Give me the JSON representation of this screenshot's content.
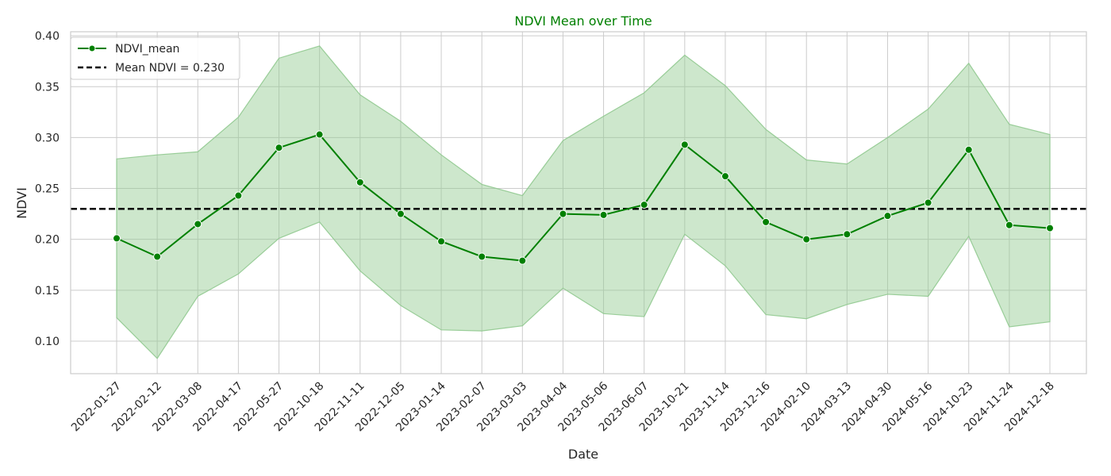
{
  "chart_data": {
    "type": "line",
    "title": "NDVI Mean over Time",
    "xlabel": "Date",
    "ylabel": "NDVI",
    "ylim": [
      0.068,
      0.404
    ],
    "yticks": [
      0.1,
      0.15,
      0.2,
      0.25,
      0.3,
      0.35,
      0.4
    ],
    "grid": true,
    "legend_placement": "top-left",
    "categories": [
      "2022-01-27",
      "2022-02-12",
      "2022-03-08",
      "2022-04-17",
      "2022-05-27",
      "2022-10-18",
      "2022-11-11",
      "2022-12-05",
      "2023-01-14",
      "2023-02-07",
      "2023-03-03",
      "2023-04-04",
      "2023-05-06",
      "2023-06-07",
      "2023-10-21",
      "2023-11-14",
      "2023-12-16",
      "2024-02-10",
      "2024-03-13",
      "2024-04-30",
      "2024-05-16",
      "2024-10-23",
      "2024-11-24",
      "2024-12-18"
    ],
    "series": [
      {
        "name": "NDVI_mean",
        "color": "#008000",
        "values": [
          0.201,
          0.183,
          0.215,
          0.243,
          0.29,
          0.303,
          0.256,
          0.225,
          0.198,
          0.183,
          0.179,
          0.225,
          0.224,
          0.234,
          0.293,
          0.262,
          0.217,
          0.2,
          0.205,
          0.223,
          0.236,
          0.288,
          0.214,
          0.211
        ]
      }
    ],
    "band": {
      "color": "#90c98f",
      "upper": [
        0.279,
        0.283,
        0.286,
        0.32,
        0.378,
        0.39,
        0.342,
        0.316,
        0.283,
        0.254,
        0.243,
        0.297,
        0.321,
        0.344,
        0.381,
        0.351,
        0.308,
        0.278,
        0.274,
        0.3,
        0.328,
        0.373,
        0.313,
        0.303
      ],
      "lower": [
        0.123,
        0.083,
        0.144,
        0.166,
        0.201,
        0.217,
        0.169,
        0.135,
        0.111,
        0.11,
        0.115,
        0.152,
        0.127,
        0.124,
        0.205,
        0.174,
        0.126,
        0.122,
        0.136,
        0.146,
        0.144,
        0.203,
        0.114,
        0.119
      ]
    },
    "reference_line": {
      "label": "Mean NDVI = 0.230",
      "value": 0.23,
      "color": "#000000",
      "style": "dashed"
    }
  }
}
